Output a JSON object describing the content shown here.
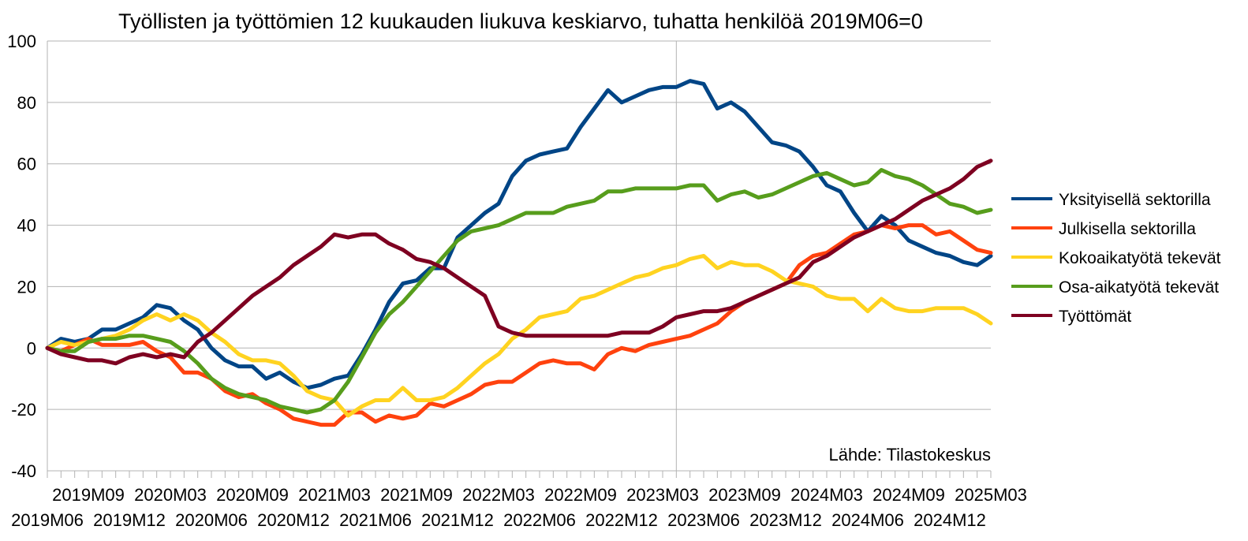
{
  "chart_data": {
    "type": "line",
    "title": "Työllisten ja työttömien 12 kuukauden liukuva keskiarvo, tuhatta henkilöä 2019M06=0",
    "source": "Lähde: Tilastokeskus",
    "xlabel": "",
    "ylabel": "",
    "ylim": [
      -40,
      100
    ],
    "yticks": [
      -40,
      -20,
      0,
      20,
      40,
      60,
      80,
      100
    ],
    "grid": true,
    "legend_position": "right",
    "vertical_marker": "2023M04",
    "x_tick_labels": [
      "2019M06",
      "2019M09",
      "2019M12",
      "2020M03",
      "2020M06",
      "2020M09",
      "2020M12",
      "2021M03",
      "2021M06",
      "2021M09",
      "2021M12",
      "2022M03",
      "2022M06",
      "2022M09",
      "2022M12",
      "2023M03",
      "2023M06",
      "2023M09",
      "2023M12",
      "2024M03",
      "2024M06",
      "2024M09",
      "2024M12",
      "2025M03"
    ],
    "x": [
      "2019M06",
      "2019M07",
      "2019M08",
      "2019M09",
      "2019M10",
      "2019M11",
      "2019M12",
      "2020M01",
      "2020M02",
      "2020M03",
      "2020M04",
      "2020M05",
      "2020M06",
      "2020M07",
      "2020M08",
      "2020M09",
      "2020M10",
      "2020M11",
      "2020M12",
      "2021M01",
      "2021M02",
      "2021M03",
      "2021M04",
      "2021M05",
      "2021M06",
      "2021M07",
      "2021M08",
      "2021M09",
      "2021M10",
      "2021M11",
      "2021M12",
      "2022M01",
      "2022M02",
      "2022M03",
      "2022M04",
      "2022M05",
      "2022M06",
      "2022M07",
      "2022M08",
      "2022M09",
      "2022M10",
      "2022M11",
      "2022M12",
      "2023M01",
      "2023M02",
      "2023M03",
      "2023M04",
      "2023M05",
      "2023M06",
      "2023M07",
      "2023M08",
      "2023M09",
      "2023M10",
      "2023M11",
      "2023M12",
      "2024M01",
      "2024M02",
      "2024M03",
      "2024M04",
      "2024M05",
      "2024M06",
      "2024M07",
      "2024M08",
      "2024M09",
      "2024M10",
      "2024M11",
      "2024M12",
      "2025M01",
      "2025M02",
      "2025M03"
    ],
    "series": [
      {
        "name": "Yksityisellä sektorilla",
        "color": "#004586",
        "values": [
          0,
          3,
          2,
          3,
          6,
          6,
          8,
          10,
          14,
          13,
          9,
          6,
          0,
          -4,
          -6,
          -6,
          -10,
          -8,
          -11,
          -13,
          -12,
          -10,
          -9,
          -2,
          6,
          15,
          21,
          22,
          26,
          26,
          36,
          40,
          44,
          47,
          56,
          61,
          63,
          64,
          65,
          72,
          78,
          84,
          80,
          82,
          84,
          85,
          85,
          87,
          86,
          78,
          80,
          77,
          72,
          67,
          66,
          64,
          59,
          53,
          51,
          44,
          38,
          43,
          40,
          35,
          33,
          31,
          30,
          28,
          27,
          30
        ]
      },
      {
        "name": "Julkisella sektorilla",
        "color": "#ff420e",
        "values": [
          0,
          -1,
          1,
          3,
          1,
          1,
          1,
          2,
          -1,
          -3,
          -8,
          -8,
          -10,
          -14,
          -16,
          -15,
          -18,
          -20,
          -23,
          -24,
          -25,
          -25,
          -21,
          -21,
          -24,
          -22,
          -23,
          -22,
          -18,
          -19,
          -17,
          -15,
          -12,
          -11,
          -11,
          -8,
          -5,
          -4,
          -5,
          -5,
          -7,
          -2,
          0,
          -1,
          1,
          2,
          3,
          4,
          6,
          8,
          12,
          15,
          17,
          19,
          21,
          27,
          30,
          31,
          34,
          37,
          38,
          40,
          39,
          40,
          40,
          37,
          38,
          35,
          32,
          31
        ]
      },
      {
        "name": "Kokoaikatyötä tekevät",
        "color": "#ffd320",
        "values": [
          0,
          2,
          1,
          2,
          3,
          4,
          6,
          9,
          11,
          9,
          11,
          9,
          5,
          2,
          -2,
          -4,
          -4,
          -5,
          -9,
          -14,
          -16,
          -17,
          -22,
          -19,
          -17,
          -17,
          -13,
          -17,
          -17,
          -16,
          -13,
          -9,
          -5,
          -2,
          3,
          6,
          10,
          11,
          12,
          16,
          17,
          19,
          21,
          23,
          24,
          26,
          27,
          29,
          30,
          26,
          28,
          27,
          27,
          25,
          22,
          21,
          20,
          17,
          16,
          16,
          12,
          16,
          13,
          12,
          12,
          13,
          13,
          13,
          11,
          8
        ]
      },
      {
        "name": "Osa-aikatyötä tekevät",
        "color": "#579d1c",
        "values": [
          0,
          -1,
          -1,
          2,
          3,
          3,
          4,
          4,
          3,
          2,
          -1,
          -5,
          -10,
          -13,
          -15,
          -16,
          -17,
          -19,
          -20,
          -21,
          -20,
          -17,
          -11,
          -3,
          5,
          11,
          15,
          20,
          25,
          30,
          35,
          38,
          39,
          40,
          42,
          44,
          44,
          44,
          46,
          47,
          48,
          51,
          51,
          52,
          52,
          52,
          52,
          53,
          53,
          48,
          50,
          51,
          49,
          50,
          52,
          54,
          56,
          57,
          55,
          53,
          54,
          58,
          56,
          55,
          53,
          50,
          47,
          46,
          44,
          45
        ]
      },
      {
        "name": "Työttömät",
        "color": "#7e0021",
        "values": [
          0,
          -2,
          -3,
          -4,
          -4,
          -5,
          -3,
          -2,
          -3,
          -2,
          -3,
          2,
          5,
          9,
          13,
          17,
          20,
          23,
          27,
          30,
          33,
          37,
          36,
          37,
          37,
          34,
          32,
          29,
          28,
          26,
          23,
          20,
          17,
          7,
          5,
          4,
          4,
          4,
          4,
          4,
          4,
          4,
          5,
          5,
          5,
          7,
          10,
          11,
          12,
          12,
          13,
          15,
          17,
          19,
          21,
          23,
          28,
          30,
          33,
          36,
          38,
          40,
          42,
          45,
          48,
          50,
          52,
          55,
          59,
          61
        ]
      }
    ]
  }
}
